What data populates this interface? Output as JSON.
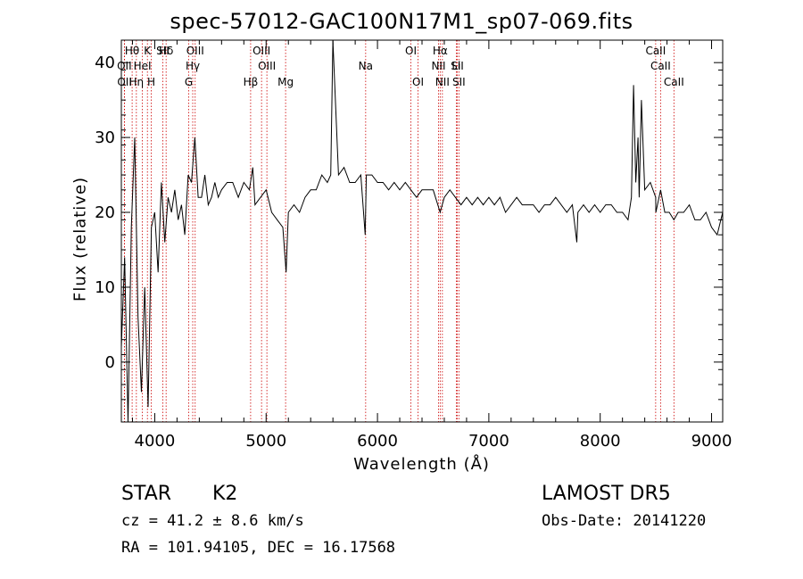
{
  "title": "spec-57012-GAC100N17M1_sp07-069.fits",
  "xlabel": "Wavelength (Å)",
  "ylabel": "Flux (relative)",
  "info": {
    "class": "STAR",
    "subclass": "K2",
    "survey": "LAMOST DR5",
    "cz": "cz = 41.2 ± 8.6 km/s",
    "obs_date": "Obs-Date: 20141220",
    "coords": "RA = 101.94105, DEC =  16.17568"
  },
  "chart_data": {
    "type": "line",
    "title": "spec-57012-GAC100N17M1_sp07-069.fits",
    "xlabel": "Wavelength (Å)",
    "ylabel": "Flux (relative)",
    "xlim": [
      3700,
      9100
    ],
    "ylim": [
      -8,
      43
    ],
    "xticks": [
      4000,
      5000,
      6000,
      7000,
      8000,
      9000
    ],
    "yticks": [
      0,
      10,
      20,
      30,
      40
    ],
    "grid": false,
    "line_color": "#000000",
    "marker_color": "#cc0000",
    "spectrum": {
      "x": [
        3700,
        3730,
        3760,
        3790,
        3820,
        3850,
        3880,
        3910,
        3940,
        3970,
        4000,
        4030,
        4060,
        4090,
        4120,
        4150,
        4180,
        4210,
        4240,
        4270,
        4300,
        4330,
        4360,
        4390,
        4420,
        4450,
        4480,
        4510,
        4540,
        4570,
        4600,
        4650,
        4700,
        4750,
        4800,
        4850,
        4880,
        4900,
        4950,
        5000,
        5050,
        5100,
        5150,
        5180,
        5200,
        5250,
        5300,
        5350,
        5400,
        5450,
        5500,
        5550,
        5580,
        5600,
        5650,
        5700,
        5750,
        5800,
        5850,
        5890,
        5900,
        5950,
        6000,
        6050,
        6100,
        6150,
        6200,
        6250,
        6300,
        6350,
        6400,
        6450,
        6500,
        6563,
        6600,
        6650,
        6700,
        6750,
        6800,
        6850,
        6900,
        6950,
        7000,
        7050,
        7100,
        7150,
        7200,
        7250,
        7300,
        7350,
        7400,
        7450,
        7500,
        7550,
        7600,
        7650,
        7700,
        7750,
        7790,
        7800,
        7850,
        7900,
        7950,
        8000,
        8050,
        8100,
        8150,
        8200,
        8250,
        8280,
        8300,
        8320,
        8340,
        8350,
        8370,
        8400,
        8450,
        8498,
        8500,
        8542,
        8580,
        8620,
        8662,
        8700,
        8750,
        8800,
        8850,
        8900,
        8950,
        9000,
        9050,
        9100
      ],
      "y": [
        2,
        14,
        -8,
        18,
        30,
        6,
        -4,
        10,
        -6,
        18,
        20,
        12,
        24,
        16,
        22,
        20,
        23,
        19,
        21,
        17,
        25,
        24,
        30,
        22,
        22,
        25,
        21,
        22,
        24,
        22,
        23,
        24,
        24,
        22,
        24,
        23,
        26,
        21,
        22,
        23,
        20,
        19,
        18,
        12,
        20,
        21,
        20,
        22,
        23,
        23,
        25,
        24,
        25,
        43,
        25,
        26,
        24,
        24,
        25,
        17,
        25,
        25,
        24,
        24,
        23,
        24,
        23,
        24,
        23,
        22,
        23,
        23,
        23,
        20,
        22,
        23,
        22,
        21,
        22,
        21,
        22,
        21,
        22,
        21,
        22,
        20,
        21,
        22,
        21,
        21,
        21,
        20,
        21,
        21,
        22,
        21,
        20,
        21,
        16,
        20,
        21,
        20,
        21,
        20,
        21,
        21,
        20,
        20,
        19,
        22,
        37,
        24,
        30,
        22,
        35,
        23,
        24,
        22,
        20,
        23,
        20,
        20,
        19,
        20,
        20,
        21,
        19,
        19,
        20,
        18,
        17,
        20
      ]
    },
    "line_markers": [
      {
        "label": "Hθ",
        "x": 3797
      },
      {
        "label": "OII",
        "x": 3727
      },
      {
        "label": "OII",
        "x": 3729
      },
      {
        "label": "Hη",
        "x": 3835
      },
      {
        "label": "HeI",
        "x": 3889
      },
      {
        "label": "K",
        "x": 3934
      },
      {
        "label": "H",
        "x": 3969
      },
      {
        "label": "SII",
        "x": 4072
      },
      {
        "label": "Hδ",
        "x": 4102
      },
      {
        "label": "G",
        "x": 4305
      },
      {
        "label": "Hγ",
        "x": 4341
      },
      {
        "label": "OIII",
        "x": 4363
      },
      {
        "label": "Hβ",
        "x": 4861
      },
      {
        "label": "OIII",
        "x": 4959
      },
      {
        "label": "OIII",
        "x": 5007
      },
      {
        "label": "Mg",
        "x": 5175
      },
      {
        "label": "Na",
        "x": 5894
      },
      {
        "label": "OI",
        "x": 6300
      },
      {
        "label": "OI",
        "x": 6364
      },
      {
        "label": "NII",
        "x": 6548
      },
      {
        "label": "Hα",
        "x": 6563
      },
      {
        "label": "NII",
        "x": 6583
      },
      {
        "label": "Li",
        "x": 6708
      },
      {
        "label": "SII",
        "x": 6716
      },
      {
        "label": "SII",
        "x": 6731
      },
      {
        "label": "CaII",
        "x": 8498
      },
      {
        "label": "CaII",
        "x": 8542
      },
      {
        "label": "CaII",
        "x": 8662
      }
    ],
    "label_rows": {
      "row1": [
        "Hθ",
        "K",
        "Hδ",
        "OIII",
        "OIII",
        "OI",
        "Hα",
        "SII",
        "CaII"
      ],
      "row2": [
        "OII",
        "HeI",
        "SII",
        "Hγ",
        "OIII",
        "Na",
        "NII",
        "Li",
        "CaII"
      ],
      "row3": [
        "OII",
        "Hη",
        "H",
        "G",
        "Hβ",
        "Mg",
        "OI",
        "NII",
        "SII",
        "CaII"
      ]
    }
  }
}
